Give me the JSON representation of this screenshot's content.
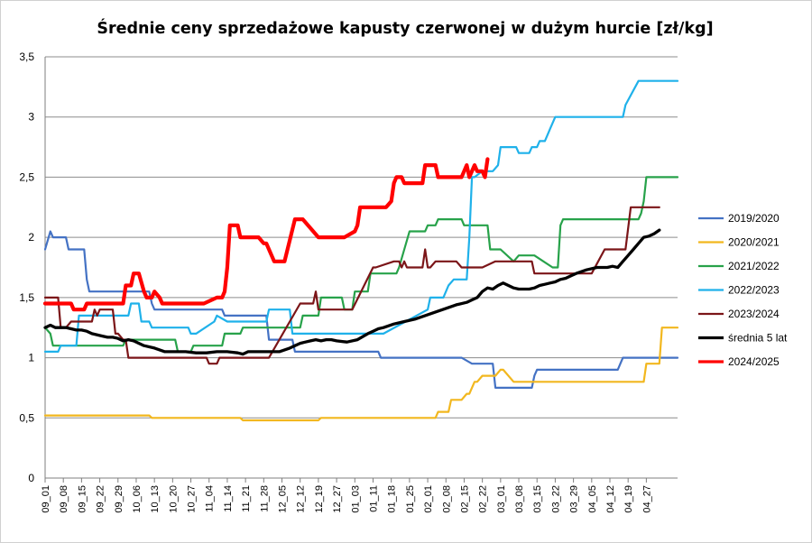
{
  "chart_data": {
    "type": "line",
    "title": "Średnie ceny sprzedażowe kapusty czerwonej w dużym hurcie [zł/kg]",
    "xlabel": "",
    "ylabel": "",
    "ylim": [
      0,
      3.5
    ],
    "yticks": [
      {
        "value": 0,
        "label": "0"
      },
      {
        "value": 0.5,
        "label": "0,5"
      },
      {
        "value": 1,
        "label": "1"
      },
      {
        "value": 1.5,
        "label": "1,5"
      },
      {
        "value": 2,
        "label": "2"
      },
      {
        "value": 2.5,
        "label": "2,5"
      },
      {
        "value": 3,
        "label": "3"
      },
      {
        "value": 3.5,
        "label": "3,5"
      }
    ],
    "x_index_max": 243,
    "xticks": [
      {
        "i": 0,
        "label": "09_01"
      },
      {
        "i": 7,
        "label": "09_08"
      },
      {
        "i": 14,
        "label": "09_15"
      },
      {
        "i": 21,
        "label": "09_22"
      },
      {
        "i": 28,
        "label": "09_29"
      },
      {
        "i": 35,
        "label": "10_06"
      },
      {
        "i": 42,
        "label": "10_13"
      },
      {
        "i": 49,
        "label": "10_20"
      },
      {
        "i": 56,
        "label": "10_27"
      },
      {
        "i": 63,
        "label": "11_04"
      },
      {
        "i": 70,
        "label": "11_14"
      },
      {
        "i": 77,
        "label": "11_21"
      },
      {
        "i": 84,
        "label": "11_28"
      },
      {
        "i": 91,
        "label": "12_05"
      },
      {
        "i": 98,
        "label": "12_12"
      },
      {
        "i": 105,
        "label": "12_19"
      },
      {
        "i": 112,
        "label": "12_27"
      },
      {
        "i": 119,
        "label": "01_03"
      },
      {
        "i": 126,
        "label": "01_11"
      },
      {
        "i": 133,
        "label": "01_18"
      },
      {
        "i": 140,
        "label": "01_25"
      },
      {
        "i": 147,
        "label": "02_01"
      },
      {
        "i": 154,
        "label": "02_08"
      },
      {
        "i": 161,
        "label": "02_15"
      },
      {
        "i": 168,
        "label": "02_22"
      },
      {
        "i": 175,
        "label": "03_01"
      },
      {
        "i": 182,
        "label": "03_08"
      },
      {
        "i": 189,
        "label": "03_15"
      },
      {
        "i": 196,
        "label": "03_22"
      },
      {
        "i": 203,
        "label": "03_29"
      },
      {
        "i": 210,
        "label": "04_05"
      },
      {
        "i": 217,
        "label": "04_12"
      },
      {
        "i": 224,
        "label": "04_19"
      },
      {
        "i": 231,
        "label": "04_27"
      }
    ],
    "legend_position": "right",
    "series": [
      {
        "name": "2019/2020",
        "color": "#4472c4",
        "width": 2.2,
        "x": [
          0,
          2,
          3,
          5,
          8,
          9,
          11,
          15,
          16,
          17,
          18,
          19,
          20,
          40,
          41,
          42,
          43,
          55,
          56,
          57,
          58,
          59,
          60,
          61,
          62,
          68,
          69,
          70,
          71,
          72,
          73,
          85,
          86,
          87,
          88,
          89,
          90,
          91,
          92,
          93,
          94,
          95,
          96,
          97,
          125,
          128,
          129,
          160,
          164,
          165,
          170,
          172,
          173,
          174,
          175,
          185,
          187,
          188,
          189,
          190,
          191,
          220,
          222,
          223,
          243
        ],
        "values": [
          1.9,
          2.05,
          2.0,
          2.0,
          2.0,
          1.9,
          1.9,
          1.9,
          1.65,
          1.55,
          1.55,
          1.55,
          1.55,
          1.55,
          1.45,
          1.4,
          1.4,
          1.4,
          1.4,
          1.4,
          1.4,
          1.4,
          1.4,
          1.4,
          1.4,
          1.4,
          1.35,
          1.35,
          1.35,
          1.35,
          1.35,
          1.35,
          1.15,
          1.15,
          1.15,
          1.15,
          1.15,
          1.15,
          1.15,
          1.15,
          1.15,
          1.15,
          1.05,
          1.05,
          1.05,
          1.05,
          1.0,
          1.0,
          0.95,
          0.95,
          0.95,
          0.95,
          0.75,
          0.75,
          0.75,
          0.75,
          0.75,
          0.85,
          0.9,
          0.9,
          0.9,
          0.9,
          1.0,
          1.0,
          1.0
        ]
      },
      {
        "name": "2020/2021",
        "color": "#f2b71e",
        "width": 2.2,
        "x": [
          0,
          40,
          41,
          75,
          76,
          105,
          106,
          150,
          151,
          155,
          156,
          158,
          160,
          162,
          163,
          165,
          166,
          168,
          170,
          172,
          173,
          175,
          176,
          180,
          181,
          200,
          225,
          230,
          231,
          236,
          237,
          238,
          243
        ],
        "values": [
          0.52,
          0.52,
          0.5,
          0.5,
          0.48,
          0.48,
          0.5,
          0.5,
          0.55,
          0.55,
          0.65,
          0.65,
          0.65,
          0.7,
          0.7,
          0.8,
          0.8,
          0.85,
          0.85,
          0.85,
          0.85,
          0.9,
          0.9,
          0.8,
          0.8,
          0.8,
          0.8,
          0.8,
          0.95,
          0.95,
          1.25,
          1.25,
          1.25
        ]
      },
      {
        "name": "2021/2022",
        "color": "#27a24a",
        "width": 2.2,
        "x": [
          0,
          2,
          3,
          30,
          31,
          33,
          34,
          50,
          51,
          56,
          57,
          63,
          64,
          68,
          69,
          75,
          76,
          85,
          86,
          98,
          99,
          105,
          106,
          114,
          115,
          118,
          119,
          124,
          125,
          135,
          136,
          140,
          142,
          146,
          147,
          150,
          151,
          153,
          155,
          160,
          161,
          170,
          171,
          174,
          175,
          180,
          182,
          187,
          188,
          195,
          197,
          198,
          199,
          200,
          205,
          215,
          225,
          228,
          229,
          230,
          231,
          236,
          243
        ],
        "values": [
          1.25,
          1.2,
          1.1,
          1.1,
          1.15,
          1.15,
          1.15,
          1.15,
          1.05,
          1.05,
          1.1,
          1.1,
          1.1,
          1.1,
          1.2,
          1.2,
          1.25,
          1.25,
          1.25,
          1.25,
          1.35,
          1.35,
          1.5,
          1.5,
          1.4,
          1.4,
          1.55,
          1.55,
          1.7,
          1.7,
          1.75,
          2.05,
          2.05,
          2.05,
          2.1,
          2.1,
          2.15,
          2.15,
          2.15,
          2.15,
          2.1,
          2.1,
          1.9,
          1.9,
          1.9,
          1.8,
          1.85,
          1.85,
          1.85,
          1.75,
          1.75,
          2.1,
          2.15,
          2.15,
          2.15,
          2.15,
          2.15,
          2.15,
          2.2,
          2.3,
          2.5,
          2.5,
          2.5
        ]
      },
      {
        "name": "2022/2023",
        "color": "#1fb1ea",
        "width": 2.2,
        "x": [
          0,
          5,
          6,
          12,
          13,
          25,
          32,
          33,
          36,
          37,
          40,
          41,
          55,
          56,
          58,
          65,
          66,
          70,
          71,
          85,
          86,
          91,
          93,
          94,
          95,
          96,
          100,
          105,
          110,
          130,
          147,
          148,
          149,
          150,
          152,
          153,
          155,
          157,
          162,
          163,
          164,
          165,
          168,
          172,
          174,
          175,
          177,
          180,
          181,
          182,
          183,
          184,
          186,
          187,
          188,
          189,
          190,
          192,
          193,
          194,
          196,
          200,
          201,
          212,
          220,
          222,
          223,
          228,
          230,
          232,
          243
        ],
        "values": [
          1.05,
          1.05,
          1.1,
          1.1,
          1.35,
          1.35,
          1.35,
          1.45,
          1.45,
          1.3,
          1.3,
          1.25,
          1.25,
          1.2,
          1.2,
          1.3,
          1.35,
          1.3,
          1.3,
          1.3,
          1.4,
          1.4,
          1.4,
          1.4,
          1.2,
          1.2,
          1.2,
          1.2,
          1.2,
          1.2,
          1.4,
          1.5,
          1.5,
          1.5,
          1.5,
          1.5,
          1.6,
          1.65,
          1.65,
          2.0,
          2.5,
          2.5,
          2.55,
          2.55,
          2.6,
          2.75,
          2.75,
          2.75,
          2.75,
          2.7,
          2.7,
          2.7,
          2.7,
          2.75,
          2.75,
          2.75,
          2.8,
          2.8,
          2.85,
          2.9,
          3.0,
          3.0,
          3.0,
          3.0,
          3.0,
          3.0,
          3.1,
          3.3,
          3.3,
          3.3,
          3.3
        ]
      },
      {
        "name": "2023/2024",
        "color": "#7b1518",
        "width": 2.2,
        "x": [
          0,
          5,
          6,
          8,
          10,
          11,
          12,
          18,
          19,
          20,
          21,
          22,
          26,
          27,
          28,
          30,
          31,
          32,
          62,
          63,
          66,
          67,
          68,
          70,
          85,
          86,
          98,
          99,
          103,
          104,
          105,
          106,
          113,
          118,
          126,
          127,
          134,
          135,
          136,
          137,
          138,
          139,
          140,
          143,
          145,
          146,
          147,
          148,
          150,
          152,
          153,
          158,
          160,
          163,
          168,
          173,
          178,
          181,
          187,
          188,
          198,
          210,
          215,
          220,
          223,
          225,
          236
        ],
        "values": [
          1.5,
          1.5,
          1.25,
          1.25,
          1.3,
          1.3,
          1.3,
          1.3,
          1.4,
          1.35,
          1.4,
          1.4,
          1.4,
          1.2,
          1.2,
          1.15,
          1.15,
          1.0,
          1.0,
          0.95,
          0.95,
          1.0,
          1.0,
          1.0,
          1.0,
          1.0,
          1.45,
          1.45,
          1.45,
          1.55,
          1.4,
          1.4,
          1.4,
          1.4,
          1.75,
          1.75,
          1.8,
          1.8,
          1.8,
          1.75,
          1.8,
          1.75,
          1.75,
          1.75,
          1.75,
          1.9,
          1.75,
          1.75,
          1.8,
          1.8,
          1.8,
          1.8,
          1.75,
          1.75,
          1.75,
          1.8,
          1.8,
          1.8,
          1.8,
          1.7,
          1.7,
          1.7,
          1.9,
          1.9,
          1.9,
          2.25,
          2.25
        ]
      },
      {
        "name": "średnia 5 lat",
        "color": "#000000",
        "width": 3.3,
        "x": [
          0,
          2,
          4,
          8,
          10,
          12,
          14,
          16,
          18,
          22,
          24,
          26,
          28,
          30,
          32,
          34,
          36,
          38,
          42,
          46,
          50,
          54,
          58,
          62,
          66,
          70,
          74,
          76,
          78,
          80,
          86,
          90,
          94,
          96,
          98,
          100,
          102,
          104,
          106,
          108,
          110,
          112,
          116,
          120,
          124,
          126,
          128,
          130,
          134,
          138,
          142,
          146,
          150,
          154,
          158,
          162,
          164,
          166,
          168,
          170,
          172,
          174,
          176,
          178,
          180,
          182,
          184,
          186,
          188,
          190,
          192,
          194,
          196,
          198,
          200,
          204,
          208,
          212,
          216,
          218,
          220,
          222,
          224,
          226,
          228,
          230,
          232,
          234,
          236
        ],
        "values": [
          1.25,
          1.27,
          1.25,
          1.25,
          1.24,
          1.23,
          1.23,
          1.22,
          1.2,
          1.18,
          1.17,
          1.17,
          1.16,
          1.14,
          1.15,
          1.14,
          1.12,
          1.1,
          1.08,
          1.05,
          1.05,
          1.05,
          1.04,
          1.04,
          1.05,
          1.05,
          1.04,
          1.03,
          1.05,
          1.05,
          1.05,
          1.05,
          1.08,
          1.1,
          1.12,
          1.13,
          1.14,
          1.15,
          1.14,
          1.15,
          1.15,
          1.14,
          1.13,
          1.15,
          1.2,
          1.22,
          1.24,
          1.25,
          1.28,
          1.3,
          1.32,
          1.35,
          1.38,
          1.41,
          1.44,
          1.46,
          1.48,
          1.5,
          1.55,
          1.58,
          1.57,
          1.6,
          1.62,
          1.6,
          1.58,
          1.57,
          1.57,
          1.57,
          1.58,
          1.6,
          1.61,
          1.62,
          1.63,
          1.65,
          1.66,
          1.7,
          1.73,
          1.75,
          1.75,
          1.76,
          1.75,
          1.8,
          1.85,
          1.9,
          1.95,
          2.0,
          2.01,
          2.03,
          2.06
        ]
      },
      {
        "name": "2024/2025",
        "color": "#ff0000",
        "width": 4.2,
        "x": [
          0,
          10,
          11,
          15,
          16,
          20,
          30,
          31,
          33,
          34,
          36,
          38,
          39,
          41,
          42,
          44,
          45,
          47,
          61,
          66,
          68,
          69,
          70,
          71,
          72,
          74,
          75,
          77,
          82,
          84,
          85,
          88,
          91,
          92,
          96,
          97,
          99,
          105,
          106,
          115,
          119,
          120,
          121,
          122,
          130,
          131,
          133,
          134,
          135,
          137,
          138,
          141,
          145,
          146,
          148,
          150,
          151,
          155,
          160,
          162,
          163,
          165,
          166,
          168,
          169,
          170
        ],
        "values": [
          1.45,
          1.45,
          1.4,
          1.4,
          1.45,
          1.45,
          1.45,
          1.6,
          1.6,
          1.7,
          1.7,
          1.55,
          1.5,
          1.5,
          1.55,
          1.5,
          1.45,
          1.45,
          1.45,
          1.5,
          1.5,
          1.55,
          1.75,
          2.1,
          2.1,
          2.1,
          2.0,
          2.0,
          2.0,
          1.95,
          1.95,
          1.8,
          1.8,
          1.8,
          2.15,
          2.15,
          2.15,
          2.0,
          2.0,
          2.0,
          2.05,
          2.1,
          2.25,
          2.25,
          2.25,
          2.25,
          2.3,
          2.45,
          2.5,
          2.5,
          2.45,
          2.45,
          2.45,
          2.6,
          2.6,
          2.6,
          2.5,
          2.5,
          2.5,
          2.6,
          2.5,
          2.6,
          2.55,
          2.55,
          2.5,
          2.65
        ]
      }
    ]
  }
}
